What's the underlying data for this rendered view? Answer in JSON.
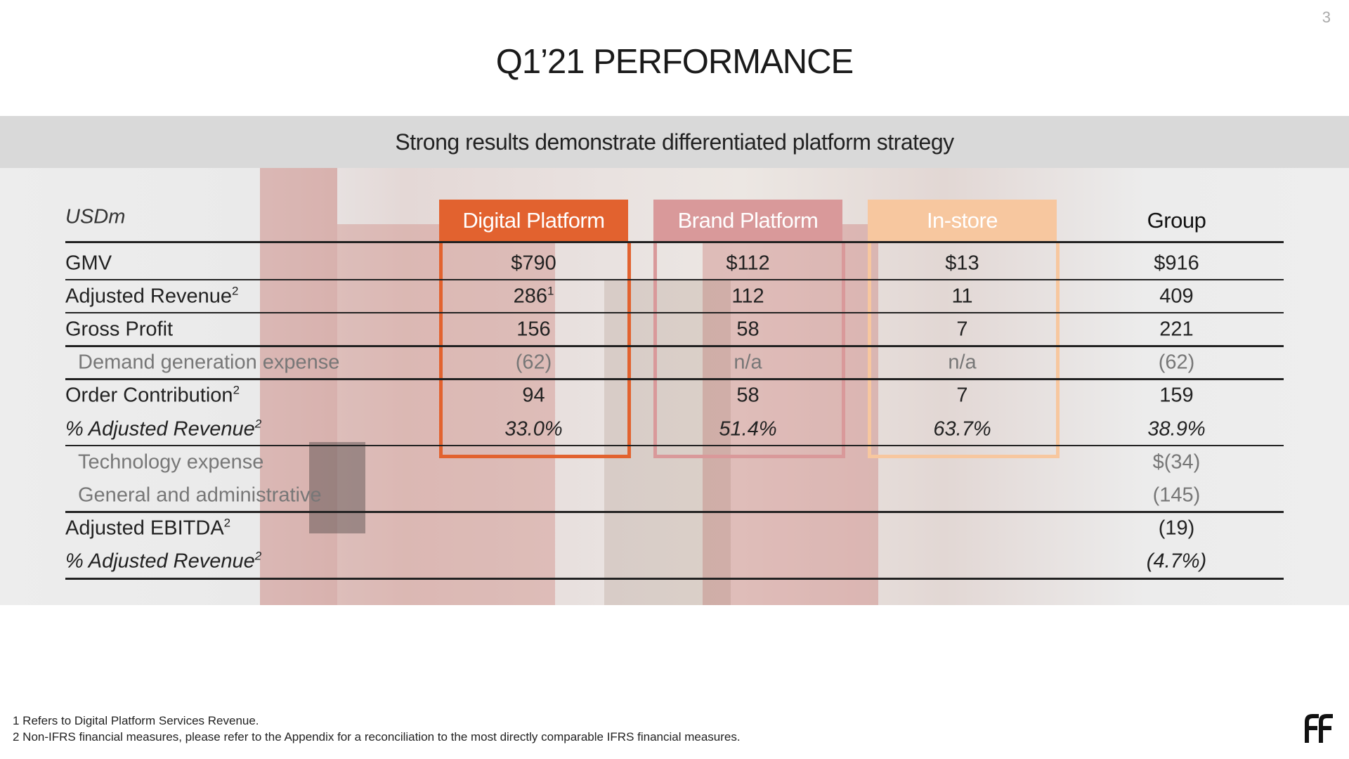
{
  "page_number": "3",
  "title": "Q1’21 PERFORMANCE",
  "subtitle": "Strong results demonstrate differentiated platform strategy",
  "table": {
    "unit": "USDm",
    "columns": [
      "Digital Platform",
      "Brand Platform",
      "In-store",
      "Group"
    ],
    "rows": [
      {
        "label": "GMV",
        "cells": [
          "$790",
          "$112",
          "$13",
          "$916"
        ]
      },
      {
        "label": "Adjusted Revenue",
        "sup": "2",
        "cells": [
          {
            "text": "286",
            "sup": "1"
          },
          "112",
          "11",
          "409"
        ]
      },
      {
        "label": "Gross Profit",
        "cells": [
          "156",
          "58",
          "7",
          "221"
        ]
      },
      {
        "label": "Demand generation expense",
        "cells": [
          "(62)",
          "n/a",
          "n/a",
          "(62)"
        ]
      },
      {
        "label": "Order Contribution",
        "sup": "2",
        "cells": [
          "94",
          "58",
          "7",
          "159"
        ]
      },
      {
        "label": "% Adjusted Revenue",
        "sup": "2",
        "cells": [
          "33.0%",
          "51.4%",
          "63.7%",
          "38.9%"
        ]
      },
      {
        "label": "Technology expense",
        "cells": [
          null,
          null,
          null,
          "$(34)"
        ]
      },
      {
        "label": "General and administrative",
        "cells": [
          null,
          null,
          null,
          "(145)"
        ]
      },
      {
        "label": "Adjusted EBITDA",
        "sup": "2",
        "cells": [
          null,
          null,
          null,
          "(19)"
        ]
      },
      {
        "label": "% Adjusted Revenue",
        "sup": "2",
        "cells": [
          null,
          null,
          null,
          "(4.7%)"
        ]
      }
    ]
  },
  "footnotes": [
    "1 Refers to Digital Platform Services Revenue.",
    "2 Non-IFRS financial measures, please refer to the Appendix for a reconciliation to the most directly comparable IFRS financial measures."
  ]
}
